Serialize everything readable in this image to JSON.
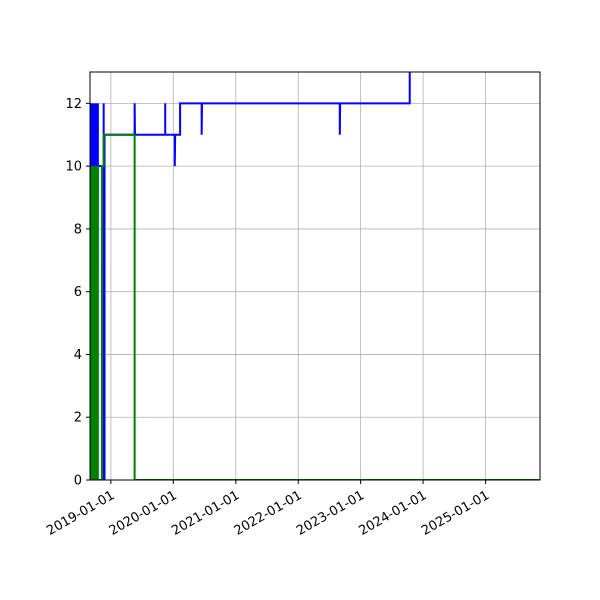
{
  "chart_data": {
    "type": "line",
    "title": "",
    "xlabel": "",
    "ylabel": "",
    "x_is_date": true,
    "xlim": [
      "2018-09-01",
      "2025-11-15"
    ],
    "ylim": [
      0,
      13
    ],
    "grid": true,
    "legend": null,
    "x_ticks": [
      "2019-01-01",
      "2020-01-01",
      "2021-01-01",
      "2022-01-01",
      "2023-01-01",
      "2024-01-01",
      "2025-01-01"
    ],
    "y_ticks": [
      0,
      2,
      4,
      6,
      8,
      10,
      12
    ],
    "series": [
      {
        "color": "#0000ff",
        "points": [
          [
            "2018-09-01",
            0
          ],
          [
            "2018-09-05",
            12
          ],
          [
            "2018-09-09",
            0
          ],
          [
            "2018-09-14",
            12
          ],
          [
            "2018-09-18",
            0
          ],
          [
            "2018-09-23",
            12
          ],
          [
            "2018-09-27",
            0
          ],
          [
            "2018-10-01",
            12
          ],
          [
            "2018-10-05",
            0
          ],
          [
            "2018-10-09",
            12
          ],
          [
            "2018-10-13",
            0
          ],
          [
            "2018-10-17",
            12
          ],
          [
            "2018-10-17",
            10
          ],
          [
            "2018-11-20",
            10
          ],
          [
            "2018-11-20",
            12
          ],
          [
            "2018-11-20",
            0
          ],
          [
            "2018-11-25",
            0
          ],
          [
            "2018-11-25",
            11
          ],
          [
            "2019-05-20",
            11
          ],
          [
            "2019-05-20",
            12
          ],
          [
            "2019-05-22",
            11
          ],
          [
            "2019-11-15",
            11
          ],
          [
            "2019-11-15",
            12
          ],
          [
            "2019-11-15",
            11
          ],
          [
            "2020-01-10",
            11
          ],
          [
            "2020-01-10",
            10
          ],
          [
            "2020-01-12",
            11
          ],
          [
            "2020-02-10",
            11
          ],
          [
            "2020-02-10",
            12
          ],
          [
            "2020-06-15",
            12
          ],
          [
            "2020-06-15",
            11
          ],
          [
            "2020-06-17",
            12
          ],
          [
            "2022-09-01",
            12
          ],
          [
            "2022-09-01",
            11
          ],
          [
            "2022-09-03",
            12
          ],
          [
            "2023-10-15",
            12
          ],
          [
            "2023-10-15",
            13
          ]
        ]
      },
      {
        "color": "#008000",
        "points": [
          [
            "2018-09-01",
            0
          ],
          [
            "2018-09-05",
            10
          ],
          [
            "2018-09-09",
            0
          ],
          [
            "2018-09-14",
            10
          ],
          [
            "2018-09-18",
            0
          ],
          [
            "2018-09-23",
            10
          ],
          [
            "2018-09-27",
            0
          ],
          [
            "2018-10-01",
            10
          ],
          [
            "2018-10-05",
            0
          ],
          [
            "2018-10-09",
            10
          ],
          [
            "2018-10-13",
            0
          ],
          [
            "2018-10-17",
            10
          ],
          [
            "2018-10-17",
            0
          ],
          [
            "2018-11-10",
            0
          ],
          [
            "2018-11-10",
            10
          ],
          [
            "2018-11-20",
            10
          ],
          [
            "2018-11-20",
            11
          ],
          [
            "2019-05-20",
            11
          ],
          [
            "2019-05-20",
            0
          ],
          [
            "2025-11-15",
            0
          ]
        ]
      }
    ]
  }
}
